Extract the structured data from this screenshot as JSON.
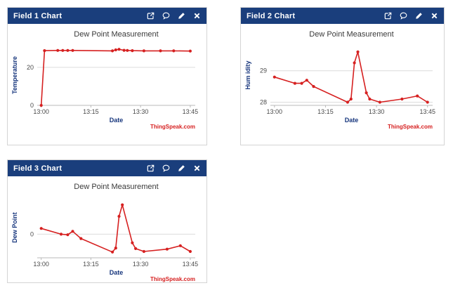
{
  "brand": {
    "watermark": "ThingSpeak.com",
    "header_color": "#1a3e7c",
    "line_color": "#d62020"
  },
  "panels": [
    {
      "title": "Field 1 Chart",
      "header_icons": [
        "external-link-icon",
        "comment-icon",
        "edit-icon",
        "close-icon"
      ],
      "chart_index": 0
    },
    {
      "title": "Field 2 Chart",
      "header_icons": [
        "external-link-icon",
        "comment-icon",
        "edit-icon",
        "close-icon"
      ],
      "chart_index": 1
    },
    {
      "title": "Field 3 Chart",
      "header_icons": [
        "external-link-icon",
        "comment-icon",
        "edit-icon",
        "close-icon"
      ],
      "chart_index": 2
    }
  ],
  "chart_data": [
    {
      "type": "line",
      "title": "Dew Point Measurement",
      "xlabel": "Date",
      "ylabel": "Temperature",
      "legend": "none",
      "grid": true,
      "x_minutes": [
        0,
        1,
        5,
        6.5,
        8,
        9.5,
        21.5,
        22.5,
        23.5,
        25,
        26,
        27.5,
        31,
        36,
        40,
        45
      ],
      "values": [
        0,
        28.8,
        28.9,
        28.9,
        28.9,
        28.9,
        28.7,
        29.2,
        29.5,
        29.0,
        28.9,
        28.8,
        28.7,
        28.7,
        28.7,
        28.6
      ],
      "x_tick_minutes": [
        0,
        15,
        30,
        45
      ],
      "x_tick_labels": [
        "13:00",
        "13:15",
        "13:30",
        "13:45"
      ],
      "y_ticks": [
        0,
        20
      ],
      "ylim": [
        0,
        31.8
      ],
      "xlim": [
        -1.2,
        46.5
      ]
    },
    {
      "type": "line",
      "title": "Dew Point Measurement",
      "xlabel": "Date",
      "ylabel": "Hum idity",
      "legend": "none",
      "grid": true,
      "x_minutes": [
        0,
        6,
        8,
        9.5,
        11.5,
        21.5,
        22.5,
        23.5,
        24.5,
        27,
        28,
        31,
        37.5,
        42,
        45
      ],
      "values": [
        28.8,
        28.6,
        28.6,
        28.7,
        28.5,
        28.0,
        28.1,
        29.25,
        29.6,
        28.3,
        28.1,
        28.0,
        28.1,
        28.2,
        28.0
      ],
      "x_tick_minutes": [
        0,
        15,
        30,
        45
      ],
      "x_tick_labels": [
        "13:00",
        "13:15",
        "13:30",
        "13:45"
      ],
      "y_ticks": [
        28,
        29
      ],
      "ylim": [
        27.9,
        29.82
      ],
      "xlim": [
        -1.2,
        46.5
      ]
    },
    {
      "type": "line",
      "title": "Dew Point Measurement",
      "xlabel": "Date",
      "ylabel": "Dew Point",
      "legend": "none",
      "grid": true,
      "x_minutes": [
        0,
        6,
        8,
        9.5,
        12,
        21.5,
        22.5,
        23.5,
        24.5,
        27.5,
        28.5,
        31,
        38,
        42,
        45
      ],
      "values": [
        0.2,
        0.0,
        -0.02,
        0.1,
        -0.15,
        -0.62,
        -0.48,
        0.62,
        1.02,
        -0.3,
        -0.5,
        -0.6,
        -0.52,
        -0.4,
        -0.6
      ],
      "x_tick_minutes": [
        0,
        15,
        30,
        45
      ],
      "x_tick_labels": [
        "13:00",
        "13:15",
        "13:30",
        "13:45"
      ],
      "y_ticks": [
        0
      ],
      "ylim": [
        -0.82,
        1.28
      ],
      "xlim": [
        -1.2,
        46.5
      ]
    }
  ]
}
